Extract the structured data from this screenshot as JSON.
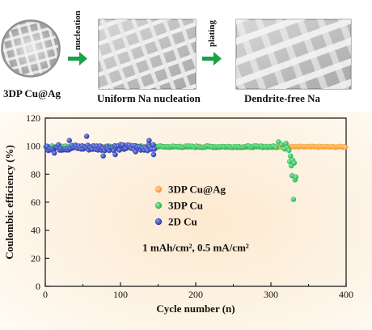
{
  "schematic": {
    "step1_label": "3DP Cu@Ag",
    "arrow1_label": "nucleation",
    "step2_label": "Uniform Na nucleation",
    "arrow2_label": "plating",
    "step3_label": "Dendrite-free Na",
    "arrow_color": "#19a24a"
  },
  "chart_data": {
    "type": "scatter",
    "xlabel": "Cycle number (n)",
    "ylabel": "Coulombic efficiency (%)",
    "xlim": [
      0,
      400
    ],
    "ylim": [
      0,
      120
    ],
    "xticks": [
      0,
      100,
      200,
      300,
      400
    ],
    "yticks": [
      0,
      20,
      40,
      60,
      80,
      100,
      120
    ],
    "annotation": "1 mAh/cm², 0.5 mA/cm²",
    "legend_position": "center-right",
    "series": [
      {
        "name": "3DP Cu@Ag",
        "color": "#f7931e",
        "x_range": [
          1,
          400
        ],
        "step": 2,
        "baseline": 99.5,
        "jitter": 0.4,
        "outliers": []
      },
      {
        "name": "3DP Cu",
        "color": "#1fb04d",
        "x_range": [
          1,
          333
        ],
        "step": 2,
        "baseline": 99.6,
        "jitter": 0.6,
        "outliers": [
          [
            310,
            103
          ],
          [
            314,
            101
          ],
          [
            318,
            98
          ],
          [
            320,
            102
          ],
          [
            322,
            99
          ],
          [
            324,
            97
          ],
          [
            325,
            89
          ],
          [
            326,
            93
          ],
          [
            327,
            86
          ],
          [
            328,
            79
          ],
          [
            329,
            90
          ],
          [
            330,
            62
          ],
          [
            331,
            88
          ],
          [
            332,
            76
          ],
          [
            333,
            78
          ]
        ]
      },
      {
        "name": "2D Cu",
        "color": "#1f2fa0",
        "x_range": [
          1,
          146
        ],
        "step": 1.5,
        "baseline": 99,
        "jitter": 2.2,
        "outliers": [
          [
            55,
            107
          ],
          [
            32,
            104
          ],
          [
            93,
            94
          ],
          [
            77,
            93
          ],
          [
            144,
            94
          ],
          [
            138,
            104
          ],
          [
            120,
            96
          ],
          [
            12,
            95
          ]
        ]
      }
    ]
  }
}
